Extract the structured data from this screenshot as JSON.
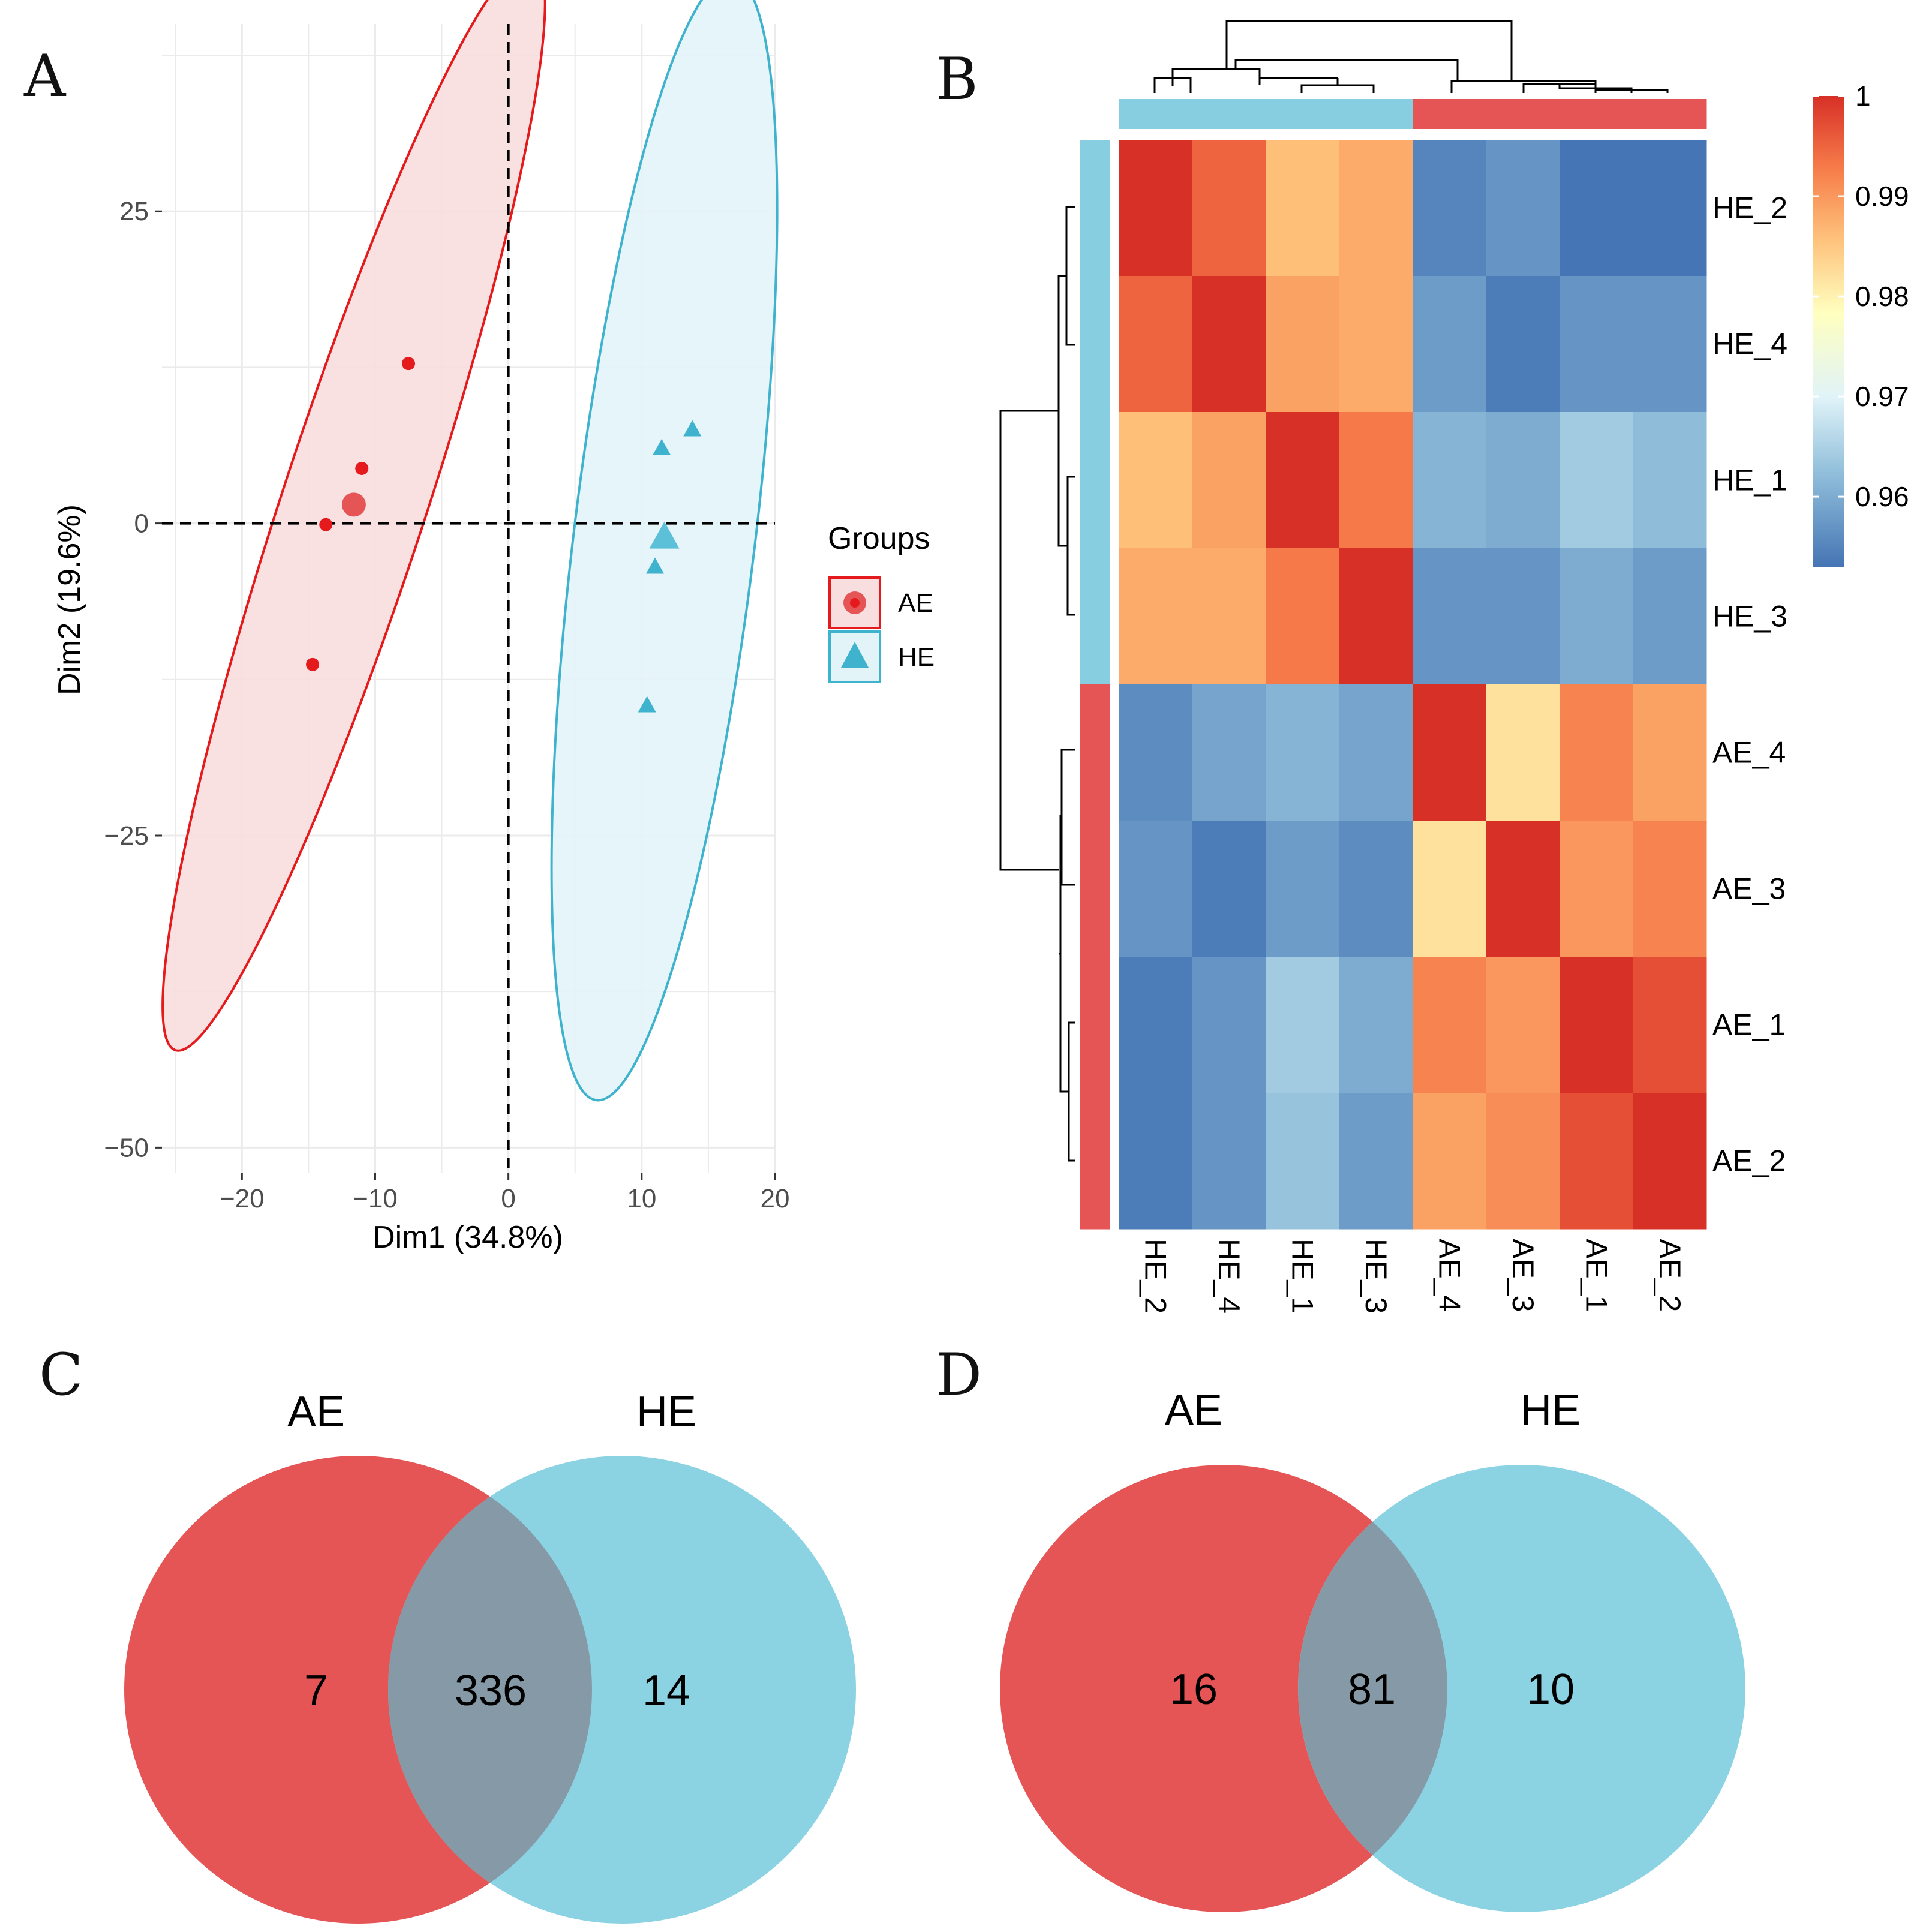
{
  "panel_labels": [
    "A",
    "B",
    "C",
    "D"
  ],
  "colors": {
    "AE": "#E41A1C",
    "HE": "#3FB3CD",
    "AE_fill": "#E55556",
    "HE_fill": "#87CFE0",
    "overlap": "#8599A6"
  },
  "chart_data": [
    {
      "panel": "A",
      "type": "scatter",
      "xlabel": "Dim1 (34.8%)",
      "ylabel": "Dim2 (19.6%)",
      "xlim": [
        -26,
        20
      ],
      "ylim": [
        -52,
        40
      ],
      "xticks": [
        -20,
        -10,
        0,
        10,
        20
      ],
      "yticks": [
        -50,
        -25,
        0,
        25
      ],
      "xtick_labels": [
        "−20",
        "−10",
        "0",
        "10",
        "20"
      ],
      "ytick_labels": [
        "−50",
        "−25",
        "0",
        "25"
      ],
      "legend": {
        "title": "Groups",
        "entries": [
          "AE",
          "HE"
        ],
        "position": "right"
      },
      "series": [
        {
          "name": "AE",
          "marker": "circle",
          "points": [
            [
              -7.5,
              12.8
            ],
            [
              -11,
              4.4
            ],
            [
              -13.7,
              -0.1
            ],
            [
              -14.7,
              -11.3
            ]
          ],
          "centroid": [
            -11.6,
            1.5
          ],
          "ellipse": {
            "center": [
              -11.6,
              1.5
            ],
            "tip1": [
              1.8,
              45.2
            ],
            "tip2": [
              -25.0,
              -42.2
            ],
            "half_width": 5.4
          }
        },
        {
          "name": "HE",
          "marker": "triangle",
          "points": [
            [
              13.8,
              7.5
            ],
            [
              11.5,
              6.0
            ],
            [
              11.0,
              -3.5
            ],
            [
              10.4,
              -14.6
            ]
          ],
          "centroid": [
            11.7,
            -1.2
          ],
          "ellipse": {
            "center": [
              11.7,
              -1.2
            ],
            "tip1": [
              16.8,
              43.8
            ],
            "tip2": [
              6.6,
              -46.2
            ],
            "half_width": 6.8
          }
        }
      ]
    },
    {
      "panel": "B",
      "type": "heatmap",
      "rows": [
        "HE_2",
        "HE_4",
        "HE_1",
        "HE_3",
        "AE_4",
        "AE_3",
        "AE_1",
        "AE_2"
      ],
      "cols": [
        "HE_2",
        "HE_4",
        "HE_1",
        "HE_3",
        "AE_4",
        "AE_3",
        "AE_1",
        "AE_2"
      ],
      "row_groups": [
        "HE",
        "HE",
        "HE",
        "HE",
        "AE",
        "AE",
        "AE",
        "AE"
      ],
      "col_groups": [
        "HE",
        "HE",
        "HE",
        "HE",
        "AE",
        "AE",
        "AE",
        "AE"
      ],
      "values": [
        [
          1.0,
          0.995,
          0.986,
          0.988,
          0.955,
          0.957,
          0.953,
          0.953
        ],
        [
          0.995,
          1.0,
          0.989,
          0.988,
          0.958,
          0.954,
          0.957,
          0.957
        ],
        [
          0.986,
          0.989,
          1.0,
          0.993,
          0.961,
          0.96,
          0.964,
          0.962
        ],
        [
          0.988,
          0.988,
          0.993,
          1.0,
          0.957,
          0.957,
          0.96,
          0.958
        ],
        [
          0.956,
          0.959,
          0.961,
          0.959,
          1.0,
          0.982,
          0.992,
          0.989
        ],
        [
          0.957,
          0.954,
          0.958,
          0.956,
          0.982,
          1.0,
          0.99,
          0.992
        ],
        [
          0.954,
          0.957,
          0.964,
          0.96,
          0.992,
          0.99,
          1.0,
          0.997
        ],
        [
          0.954,
          0.957,
          0.963,
          0.958,
          0.989,
          0.991,
          0.997,
          1.0
        ]
      ],
      "colorbar": {
        "min": 0.953,
        "max": 1.0,
        "ticks": [
          0.96,
          0.97,
          0.98,
          0.99,
          1.0
        ],
        "tick_labels": [
          "0.96",
          "0.97",
          "0.98",
          "0.99",
          "1"
        ]
      }
    },
    {
      "panel": "C",
      "type": "venn",
      "sets": [
        "AE",
        "HE"
      ],
      "counts": {
        "left": "7",
        "overlap": "336",
        "right": "14"
      }
    },
    {
      "panel": "D",
      "type": "venn",
      "sets": [
        "AE",
        "HE"
      ],
      "counts": {
        "left": "16",
        "overlap": "81",
        "right": "10"
      }
    }
  ]
}
